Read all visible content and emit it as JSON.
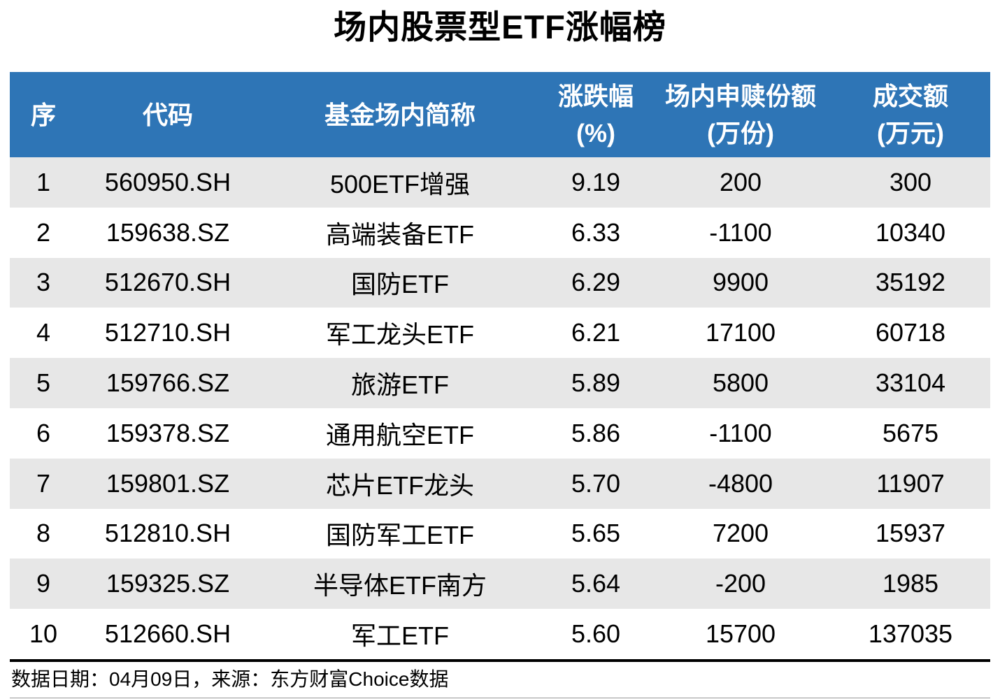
{
  "page": {
    "title": "场内股票型ETF涨幅榜",
    "footer_note": "数据日期：04月09日，来源：东方财富Choice数据"
  },
  "colors": {
    "header_bg": "#2E75B6",
    "header_text": "#FFFFFF",
    "row_alt_bg": "#E7E7E7",
    "row_bg": "#FFFFFF",
    "text": "#000000"
  },
  "chart_data": {
    "type": "table",
    "title": "场内股票型ETF涨幅榜",
    "columns": [
      {
        "label": "序",
        "sub": ""
      },
      {
        "label": "代码",
        "sub": ""
      },
      {
        "label": "基金场内简称",
        "sub": ""
      },
      {
        "label": "涨跌幅",
        "sub": "(%)"
      },
      {
        "label": "场内申赎份额",
        "sub": "(万份)"
      },
      {
        "label": "成交额",
        "sub": "(万元)"
      }
    ],
    "rows": [
      [
        "1",
        "560950.SH",
        "500ETF增强",
        "9.19",
        "200",
        "300"
      ],
      [
        "2",
        "159638.SZ",
        "高端装备ETF",
        "6.33",
        "-1100",
        "10340"
      ],
      [
        "3",
        "512670.SH",
        "国防ETF",
        "6.29",
        "9900",
        "35192"
      ],
      [
        "4",
        "512710.SH",
        "军工龙头ETF",
        "6.21",
        "17100",
        "60718"
      ],
      [
        "5",
        "159766.SZ",
        "旅游ETF",
        "5.89",
        "5800",
        "33104"
      ],
      [
        "6",
        "159378.SZ",
        "通用航空ETF",
        "5.86",
        "-1100",
        "5675"
      ],
      [
        "7",
        "159801.SZ",
        "芯片ETF龙头",
        "5.70",
        "-4800",
        "11907"
      ],
      [
        "8",
        "512810.SH",
        "国防军工ETF",
        "5.65",
        "7200",
        "15937"
      ],
      [
        "9",
        "159325.SZ",
        "半导体ETF南方",
        "5.64",
        "-200",
        "1985"
      ],
      [
        "10",
        "512660.SH",
        "军工ETF",
        "5.60",
        "15700",
        "137035"
      ]
    ],
    "source_note": "数据日期：04月09日，来源：东方财富Choice数据"
  }
}
